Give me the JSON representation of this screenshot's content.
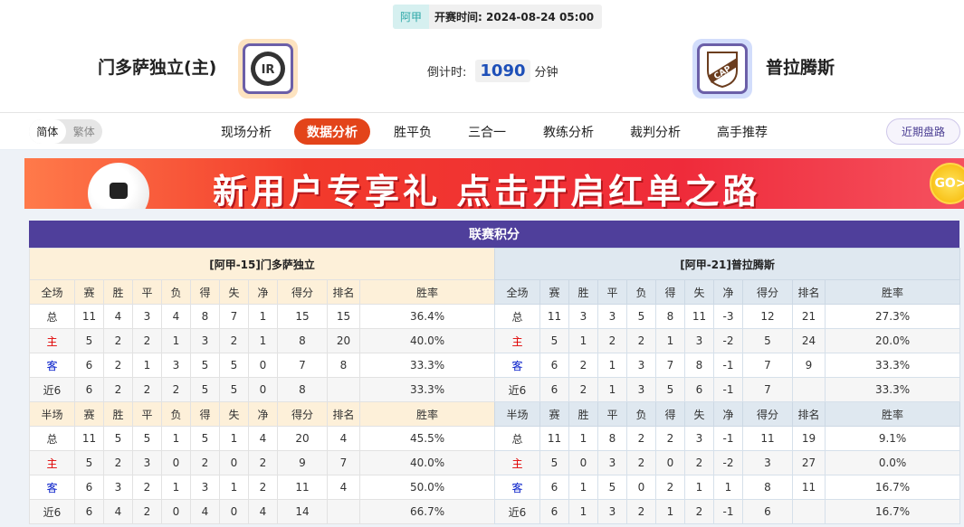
{
  "match": {
    "league": "阿甲",
    "kickoff_label": "开赛时间:",
    "kickoff": "2024-08-24 05:00",
    "home": "门多萨独立(主)",
    "away": "普拉腾斯",
    "countdown_label": "倒计时:",
    "countdown": "1090",
    "countdown_unit": "分钟",
    "away_logo_text": "CAP"
  },
  "lang": {
    "simplified": "简体",
    "traditional": "繁体"
  },
  "nav": [
    "现场分析",
    "数据分析",
    "胜平负",
    "三合一",
    "教练分析",
    "裁判分析",
    "高手推荐"
  ],
  "nav_active": 1,
  "recent_button": "近期盘路",
  "banner": {
    "text": "新用户专享礼 点击开启红单之路",
    "coin": "GO>"
  },
  "standings": {
    "title": "联赛积分",
    "columns_full": [
      "全场",
      "赛",
      "胜",
      "平",
      "负",
      "得",
      "失",
      "净",
      "得分",
      "排名",
      "胜率"
    ],
    "columns_half": [
      "半场",
      "赛",
      "胜",
      "平",
      "负",
      "得",
      "失",
      "净",
      "得分",
      "排名",
      "胜率"
    ],
    "teams": [
      {
        "caption": "[阿甲-15]门多萨独立",
        "full": [
          [
            "总",
            "11",
            "4",
            "3",
            "4",
            "8",
            "7",
            "1",
            "15",
            "15",
            "36.4%"
          ],
          [
            "主",
            "5",
            "2",
            "2",
            "1",
            "3",
            "2",
            "1",
            "8",
            "20",
            "40.0%"
          ],
          [
            "客",
            "6",
            "2",
            "1",
            "3",
            "5",
            "5",
            "0",
            "7",
            "8",
            "33.3%"
          ],
          [
            "近6",
            "6",
            "2",
            "2",
            "2",
            "5",
            "5",
            "0",
            "8",
            "",
            "33.3%"
          ]
        ],
        "half": [
          [
            "总",
            "11",
            "5",
            "5",
            "1",
            "5",
            "1",
            "4",
            "20",
            "4",
            "45.5%"
          ],
          [
            "主",
            "5",
            "2",
            "3",
            "0",
            "2",
            "0",
            "2",
            "9",
            "7",
            "40.0%"
          ],
          [
            "客",
            "6",
            "3",
            "2",
            "1",
            "3",
            "1",
            "2",
            "11",
            "4",
            "50.0%"
          ],
          [
            "近6",
            "6",
            "4",
            "2",
            "0",
            "4",
            "0",
            "4",
            "14",
            "",
            "66.7%"
          ]
        ]
      },
      {
        "caption": "[阿甲-21]普拉腾斯",
        "full": [
          [
            "总",
            "11",
            "3",
            "3",
            "5",
            "8",
            "11",
            "-3",
            "12",
            "21",
            "27.3%"
          ],
          [
            "主",
            "5",
            "1",
            "2",
            "2",
            "1",
            "3",
            "-2",
            "5",
            "24",
            "20.0%"
          ],
          [
            "客",
            "6",
            "2",
            "1",
            "3",
            "7",
            "8",
            "-1",
            "7",
            "9",
            "33.3%"
          ],
          [
            "近6",
            "6",
            "2",
            "1",
            "3",
            "5",
            "6",
            "-1",
            "7",
            "",
            "33.3%"
          ]
        ],
        "half": [
          [
            "总",
            "11",
            "1",
            "8",
            "2",
            "2",
            "3",
            "-1",
            "11",
            "19",
            "9.1%"
          ],
          [
            "主",
            "5",
            "0",
            "3",
            "2",
            "0",
            "2",
            "-2",
            "3",
            "27",
            "0.0%"
          ],
          [
            "客",
            "6",
            "1",
            "5",
            "0",
            "2",
            "1",
            "1",
            "8",
            "11",
            "16.7%"
          ],
          [
            "近6",
            "6",
            "1",
            "3",
            "2",
            "1",
            "2",
            "-1",
            "6",
            "",
            "16.7%"
          ]
        ]
      }
    ]
  },
  "colors": {
    "accent": "#e3441a",
    "header": "#4f3f9b",
    "home_label": "#e00000",
    "away_label": "#0019c8"
  }
}
